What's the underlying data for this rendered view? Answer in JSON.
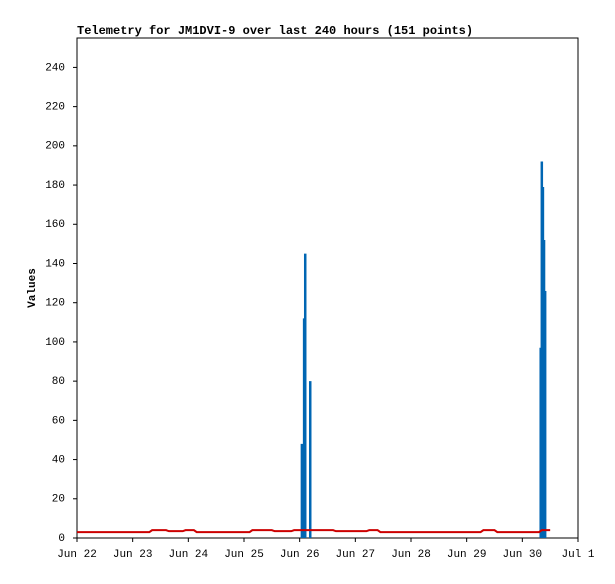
{
  "chart_data": {
    "type": "line",
    "title": "Telemetry for JM1DVI-9 over last 240 hours (151 points)",
    "y_label": "Values",
    "xlim": [
      22,
      31
    ],
    "xticks": [
      {
        "value": 22,
        "label": "Jun 22"
      },
      {
        "value": 23,
        "label": "Jun 23"
      },
      {
        "value": 24,
        "label": "Jun 24"
      },
      {
        "value": 25,
        "label": "Jun 25"
      },
      {
        "value": 26,
        "label": "Jun 26"
      },
      {
        "value": 27,
        "label": "Jun 27"
      },
      {
        "value": 28,
        "label": "Jun 28"
      },
      {
        "value": 29,
        "label": "Jun 29"
      },
      {
        "value": 30,
        "label": "Jun 30"
      },
      {
        "value": 31,
        "label": "Jul 1"
      }
    ],
    "ylim": [
      0,
      255
    ],
    "yticks": [
      0,
      20,
      40,
      60,
      80,
      100,
      120,
      140,
      160,
      180,
      200,
      220,
      240
    ],
    "series": [
      {
        "color": "#0066b3",
        "style": "impulse",
        "x": [
          26.04,
          26.08,
          26.1,
          26.19,
          30.33,
          30.35,
          30.37,
          30.39,
          30.41
        ],
        "values": [
          48,
          112,
          145,
          80,
          97,
          192,
          179,
          152,
          126
        ]
      },
      {
        "color": "#cc0000",
        "style": "line",
        "x": [
          22.0,
          23.3,
          23.35,
          23.6,
          23.65,
          23.9,
          23.95,
          24.1,
          24.15,
          25.1,
          25.15,
          25.5,
          25.55,
          25.85,
          25.9,
          26.6,
          26.65,
          27.2,
          27.25,
          27.4,
          27.45,
          29.25,
          29.3,
          29.5,
          29.55,
          30.3,
          30.35,
          30.5
        ],
        "values": [
          3,
          3,
          4,
          4,
          3.5,
          3.5,
          4,
          4,
          3,
          3,
          4,
          4,
          3.5,
          3.5,
          4,
          4,
          3.5,
          3.5,
          4,
          4,
          3,
          3,
          4,
          4,
          3,
          3,
          4,
          4
        ]
      }
    ]
  }
}
